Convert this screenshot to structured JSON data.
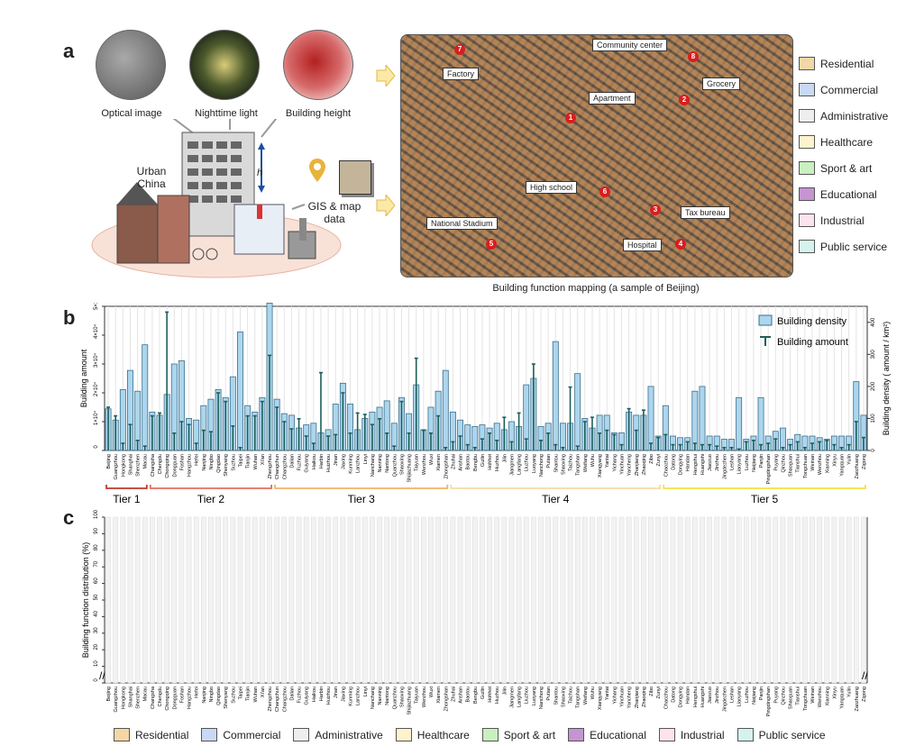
{
  "panels": {
    "a": "a",
    "b": "b",
    "c": "c"
  },
  "sources": {
    "optical": "Optical image",
    "nighttime": "Nighttime light",
    "height": "Building height",
    "urban": "Urban\nChina",
    "gis": "GIS & map\ndata",
    "h_label": "h"
  },
  "map": {
    "caption": "Building function mapping (a sample of Beijing)",
    "tags": [
      {
        "label": "Factory",
        "num": "7"
      },
      {
        "label": "Community center",
        "num": "8"
      },
      {
        "label": "Apartment",
        "num": "1"
      },
      {
        "label": "Grocery",
        "num": "2"
      },
      {
        "label": "High school",
        "num": "6"
      },
      {
        "label": "Tax bureau",
        "num": "3"
      },
      {
        "label": "National Stadium",
        "num": "5"
      },
      {
        "label": "Hospital",
        "num": "4"
      }
    ]
  },
  "function_legend": [
    {
      "label": "Residential",
      "color": "#f5d7a5"
    },
    {
      "label": "Commercial",
      "color": "#c9d9f3"
    },
    {
      "label": "Administrative",
      "color": "#eeeeee"
    },
    {
      "label": "Healthcare",
      "color": "#fdf3cc"
    },
    {
      "label": "Sport & art",
      "color": "#c9f0bf"
    },
    {
      "label": "Educational",
      "color": "#c495d1"
    },
    {
      "label": "Industrial",
      "color": "#fde3ee"
    },
    {
      "label": "Public service",
      "color": "#d5f3ec"
    }
  ],
  "chart_data": [
    {
      "type": "bar",
      "ylabel": "Building amount",
      "y2label": "Building density ( amount / km²)",
      "ylim": [
        0,
        50000
      ],
      "y2lim": [
        0,
        450
      ],
      "yticks": [
        "0",
        "1×10⁴",
        "2×10⁴",
        "3×10⁴",
        "4×10⁴",
        "5×10⁴"
      ],
      "y2ticks": [
        "0",
        "100",
        "200",
        "300",
        "400"
      ],
      "legend": [
        "Building density",
        "Building amount"
      ],
      "legend_position": "top-right",
      "categories": [
        "Beijing",
        "Guangzhou",
        "Hongkong",
        "Shanghai",
        "Shenzhen",
        "Macau",
        "Changsha",
        "Chengdu",
        "Chongqing",
        "Dongguan",
        "Foshan",
        "Hangzhou",
        "Hefei",
        "Nanjing",
        "Ningbo",
        "Qingdao",
        "Shenyang",
        "Suzhou",
        "Taipei",
        "Tianjin",
        "Wuhan",
        "Xi'an",
        "Zhengzhou",
        "Changchun",
        "Changzhou",
        "Dalian",
        "Fuzhou",
        "Guiyang",
        "Haikou",
        "Harbin",
        "Huizhou",
        "Jinan",
        "Jiaxing",
        "Kunming",
        "Lanzhou",
        "Linyi",
        "Nanchang",
        "Nanning",
        "Nantong",
        "Quanzhou",
        "Shaoxing",
        "Shijiazhuang",
        "Taiyuan",
        "Wenzhou",
        "Wuxi",
        "Xiamen",
        "Zhongshan",
        "Zhuhai",
        "Anshan",
        "Baotou",
        "Bengbu",
        "Guilin",
        "Hohhot",
        "Huzhou",
        "Jilin",
        "Jiangmen",
        "Langfang",
        "Liuzhou",
        "Luoyang",
        "Nanchong",
        "Putian",
        "Shantou",
        "Shaoxing",
        "Taizhou",
        "Tangshan",
        "Weifang",
        "Wuhu",
        "Xiangyang",
        "Yantai",
        "Yichang",
        "Yinchuan",
        "Yancheng",
        "Zhanjiang",
        "Zhaoqing",
        "Zibo",
        "Zunyi",
        "Chaozhou",
        "Datong",
        "Dongying",
        "Handan",
        "Hengshui",
        "Huangshi",
        "Jiaozuo",
        "Jinzhou",
        "Jingdezhen",
        "Leshan",
        "Liaoyang",
        "Luzhou",
        "Neijiang",
        "Panjin",
        "Pingdingshan",
        "Puyang",
        "Qinzhou",
        "Shaoguan",
        "Tianshui",
        "Tongchuan",
        "Weinan",
        "Wenzhou",
        "Xianning",
        "Xinyu",
        "Yangquan",
        "Yulin",
        "Zaozhuang",
        "Zigong"
      ],
      "tiers": [
        {
          "label": "Tier 1",
          "count": 6,
          "color": "#c0392b"
        },
        {
          "label": "Tier 2",
          "count": 17,
          "color": "#e07060"
        },
        {
          "label": "Tier 3",
          "count": 24,
          "color": "#f3b266"
        },
        {
          "label": "Tier 4",
          "count": 29,
          "color": "#f7d9a0"
        },
        {
          "label": "Tier 5",
          "count": 28,
          "color": "#f2e04a"
        }
      ],
      "density": [
        130,
        95,
        190,
        250,
        185,
        330,
        120,
        110,
        175,
        270,
        280,
        100,
        95,
        140,
        160,
        190,
        165,
        230,
        370,
        140,
        120,
        165,
        460,
        160,
        115,
        110,
        70,
        80,
        85,
        55,
        65,
        145,
        210,
        145,
        65,
        100,
        120,
        135,
        155,
        85,
        165,
        115,
        205,
        65,
        135,
        185,
        250,
        120,
        95,
        80,
        75,
        80,
        70,
        85,
        65,
        90,
        75,
        205,
        225,
        75,
        85,
        340,
        85,
        85,
        240,
        100,
        70,
        110,
        110,
        55,
        55,
        120,
        110,
        110,
        200,
        45,
        140,
        45,
        40,
        40,
        185,
        200,
        45,
        45,
        35,
        35,
        165,
        35,
        45,
        165,
        45,
        60,
        70,
        35,
        50,
        45,
        45,
        40,
        35,
        45,
        45,
        45,
        215,
        110
      ],
      "amount": [
        15000,
        12000,
        2500,
        9000,
        3500,
        1500,
        12000,
        13000,
        48000,
        6000,
        10000,
        9000,
        2500,
        7000,
        6500,
        20000,
        17000,
        8500,
        1000,
        12000,
        12000,
        17000,
        33000,
        15000,
        10000,
        7500,
        11000,
        5000,
        2500,
        27000,
        5000,
        5500,
        20000,
        6000,
        13000,
        12500,
        9000,
        11000,
        6000,
        1500,
        17000,
        6000,
        32000,
        7000,
        6000,
        12000,
        1000,
        3000,
        5000,
        2000,
        1000,
        4000,
        6000,
        3500,
        11500,
        3000,
        13000,
        4000,
        30000,
        3500,
        6000,
        2000,
        1000,
        22000,
        1500,
        10000,
        11500,
        6000,
        7000,
        5500,
        2000,
        14500,
        7000,
        14000,
        2500,
        4500,
        5500,
        2000,
        2000,
        3000,
        2500,
        2000,
        2000,
        1500,
        1000,
        1000,
        500,
        3000,
        3500,
        2000,
        2500,
        4000,
        1000,
        2000,
        3000,
        1000,
        2500,
        3000,
        3500,
        2000,
        1000,
        2000,
        10000,
        4500
      ]
    },
    {
      "type": "bar",
      "ylabel": "Building function distribution (%)",
      "ylim": [
        0,
        100
      ],
      "yticks": [
        "0",
        "10",
        "20",
        "30",
        "40",
        "50",
        "60",
        "70",
        "80",
        "90",
        "100"
      ],
      "categories_ref": "same as panel b",
      "stacked": true,
      "series_ref": "function_legend"
    }
  ]
}
